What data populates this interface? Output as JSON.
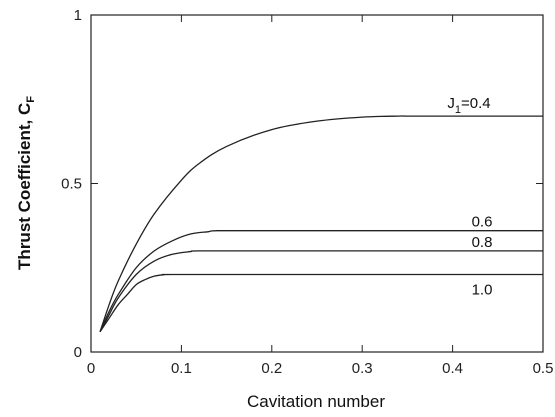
{
  "chart_data": {
    "type": "line",
    "title": "",
    "xlabel": "Cavitation number",
    "ylabel": "Thrust Coefficient, C",
    "ylabel_sub": "F",
    "xlim": [
      0,
      0.5
    ],
    "ylim": [
      0,
      1
    ],
    "xticks": [
      0,
      0.1,
      0.2,
      0.3,
      0.4,
      0.5
    ],
    "xtick_labels": [
      "0",
      "0.1",
      "0.2",
      "0.3",
      "0.4",
      "0.5"
    ],
    "yticks": [
      0,
      0.5,
      1
    ],
    "ytick_labels": [
      "0",
      "0.5",
      "1"
    ],
    "grid": false,
    "line_color": "#222222",
    "series": [
      {
        "label_main": "J",
        "label_sub": "1",
        "label_rest": "=0.4",
        "x": [
          0.01,
          0.02,
          0.03,
          0.05,
          0.07,
          0.1,
          0.12,
          0.15,
          0.2,
          0.25,
          0.3,
          0.34,
          0.35,
          0.4,
          0.45,
          0.5
        ],
        "y": [
          0.06,
          0.14,
          0.21,
          0.32,
          0.41,
          0.51,
          0.56,
          0.61,
          0.66,
          0.685,
          0.697,
          0.7,
          0.7,
          0.7,
          0.7,
          0.7
        ]
      },
      {
        "label_main": "0.6",
        "x": [
          0.01,
          0.02,
          0.03,
          0.05,
          0.07,
          0.09,
          0.11,
          0.13,
          0.14,
          0.2,
          0.3,
          0.4,
          0.5
        ],
        "y": [
          0.06,
          0.12,
          0.17,
          0.25,
          0.3,
          0.33,
          0.35,
          0.357,
          0.36,
          0.36,
          0.36,
          0.36,
          0.36
        ]
      },
      {
        "label_main": "0.8",
        "x": [
          0.01,
          0.02,
          0.03,
          0.05,
          0.07,
          0.09,
          0.11,
          0.12,
          0.2,
          0.3,
          0.4,
          0.5
        ],
        "y": [
          0.06,
          0.11,
          0.16,
          0.23,
          0.27,
          0.29,
          0.298,
          0.3,
          0.3,
          0.3,
          0.3,
          0.3
        ]
      },
      {
        "label_main": "1.0",
        "x": [
          0.01,
          0.02,
          0.03,
          0.04,
          0.05,
          0.06,
          0.07,
          0.08,
          0.09,
          0.2,
          0.3,
          0.4,
          0.5
        ],
        "y": [
          0.06,
          0.1,
          0.14,
          0.17,
          0.2,
          0.215,
          0.225,
          0.229,
          0.23,
          0.23,
          0.23,
          0.23,
          0.23
        ]
      }
    ]
  }
}
